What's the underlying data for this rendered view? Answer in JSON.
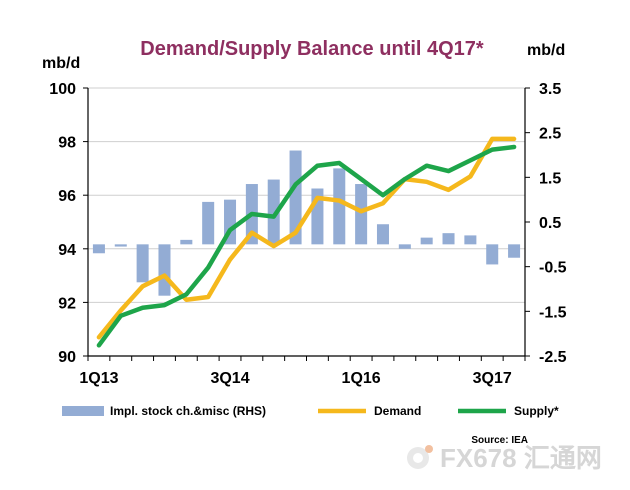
{
  "chart_data": {
    "type": "bar+line",
    "title": "Demand/Supply Balance until 4Q17*",
    "y_left_unit": "mb/d",
    "y_right_unit": "mb/d",
    "y_left_range": [
      90,
      100
    ],
    "y_right_range": [
      -2.5,
      3.5
    ],
    "y_left_ticks": [
      "90",
      "92",
      "94",
      "96",
      "98",
      "100"
    ],
    "y_right_ticks": [
      "-2.5",
      "-1.5",
      "-0.5",
      "0.5",
      "1.5",
      "2.5",
      "3.5"
    ],
    "x_tick_labels": [
      "1Q13",
      "3Q14",
      "1Q16",
      "3Q17"
    ],
    "categories": [
      "1Q13",
      "2Q13",
      "3Q13",
      "4Q13",
      "1Q14",
      "2Q14",
      "3Q14",
      "4Q14",
      "1Q15",
      "2Q15",
      "3Q15",
      "4Q15",
      "1Q16",
      "2Q16",
      "3Q16",
      "4Q16",
      "1Q17",
      "2Q17",
      "3Q17",
      "4Q17"
    ],
    "series": [
      {
        "name": "Impl. stock ch.&misc (RHS)",
        "axis": "right",
        "type": "bar",
        "color": "#93acd4",
        "values": [
          -0.2,
          -0.05,
          -0.85,
          -1.15,
          0.1,
          0.95,
          1.0,
          1.35,
          1.45,
          2.1,
          1.25,
          1.7,
          1.35,
          0.45,
          -0.1,
          0.15,
          0.25,
          0.2,
          -0.45,
          -0.3
        ]
      },
      {
        "name": "Demand",
        "axis": "left",
        "type": "line",
        "color": "#f5b81c",
        "values": [
          90.7,
          91.7,
          92.6,
          93.0,
          92.1,
          92.2,
          93.6,
          94.6,
          94.1,
          94.6,
          95.9,
          95.8,
          95.4,
          95.7,
          96.6,
          96.5,
          96.2,
          96.7,
          98.1,
          98.1
        ]
      },
      {
        "name": "Supply*",
        "axis": "left",
        "type": "line",
        "color": "#1ea54a",
        "values": [
          90.4,
          91.5,
          91.8,
          91.9,
          92.3,
          93.3,
          94.7,
          95.3,
          95.2,
          96.4,
          97.1,
          97.2,
          96.6,
          96.0,
          96.6,
          97.1,
          96.9,
          97.3,
          97.7,
          97.8
        ]
      }
    ],
    "legend_position": "bottom",
    "source": "Source: IEA",
    "grid": "horizontal"
  },
  "colors": {
    "title": "#8e2f60",
    "grid": "#cfcfcf",
    "axis": "#000000"
  },
  "watermark": {
    "text": "FX678 汇通网"
  }
}
